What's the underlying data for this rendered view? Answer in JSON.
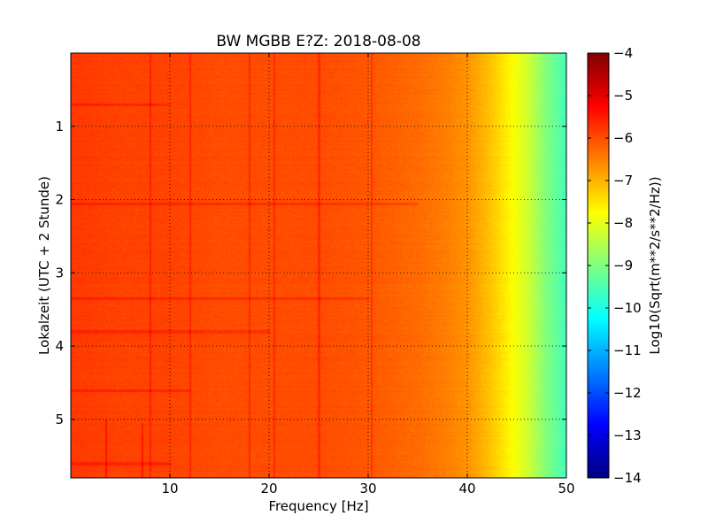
{
  "chart_data": {
    "type": "heatmap",
    "title": "BW MGBB E?Z: 2018-08-08",
    "xlabel": "Frequency [Hz]",
    "ylabel": "Lokalzeit (UTC + 2 Stunde)",
    "xlim": [
      0,
      50
    ],
    "ylim": [
      5.8,
      0
    ],
    "x_ticks": [
      10,
      20,
      30,
      40,
      50
    ],
    "y_ticks": [
      1,
      2,
      3,
      4,
      5
    ],
    "grid": true,
    "colormap": "jet",
    "colorbar": {
      "label": "Log10(Sqrt(m**2/s**2/Hz))",
      "range": [
        -14,
        -4
      ],
      "ticks": [
        -4,
        -5,
        -6,
        -7,
        -8,
        -9,
        -10,
        -11,
        -12,
        -13,
        -14
      ]
    },
    "spectrum_profile": {
      "frequency_hz": [
        0,
        5,
        10,
        15,
        20,
        25,
        30,
        35,
        38,
        40,
        42,
        44,
        46,
        48,
        50
      ],
      "log10_amplitude": [
        -5.8,
        -5.9,
        -5.9,
        -6.0,
        -6.0,
        -6.0,
        -6.1,
        -6.3,
        -6.5,
        -6.7,
        -7.1,
        -7.6,
        -8.2,
        -9.0,
        -9.6
      ]
    },
    "persistent_lines_hz": [
      8,
      12,
      18,
      20.5,
      25,
      30.3
    ],
    "late_lines": [
      {
        "frequency_hz": 3.5,
        "from_hour": 5.0
      },
      {
        "frequency_hz": 7.2,
        "from_hour": 5.05
      }
    ],
    "noise_bands": [
      {
        "hour": 0.7,
        "frequency_range_hz": [
          0,
          10
        ]
      },
      {
        "hour": 2.05,
        "frequency_range_hz": [
          0,
          35
        ]
      },
      {
        "hour": 3.35,
        "frequency_range_hz": [
          0,
          30
        ]
      },
      {
        "hour": 3.8,
        "frequency_range_hz": [
          0,
          20
        ]
      },
      {
        "hour": 4.6,
        "frequency_range_hz": [
          0,
          12
        ]
      },
      {
        "hour": 5.6,
        "frequency_range_hz": [
          0,
          10
        ]
      }
    ]
  }
}
